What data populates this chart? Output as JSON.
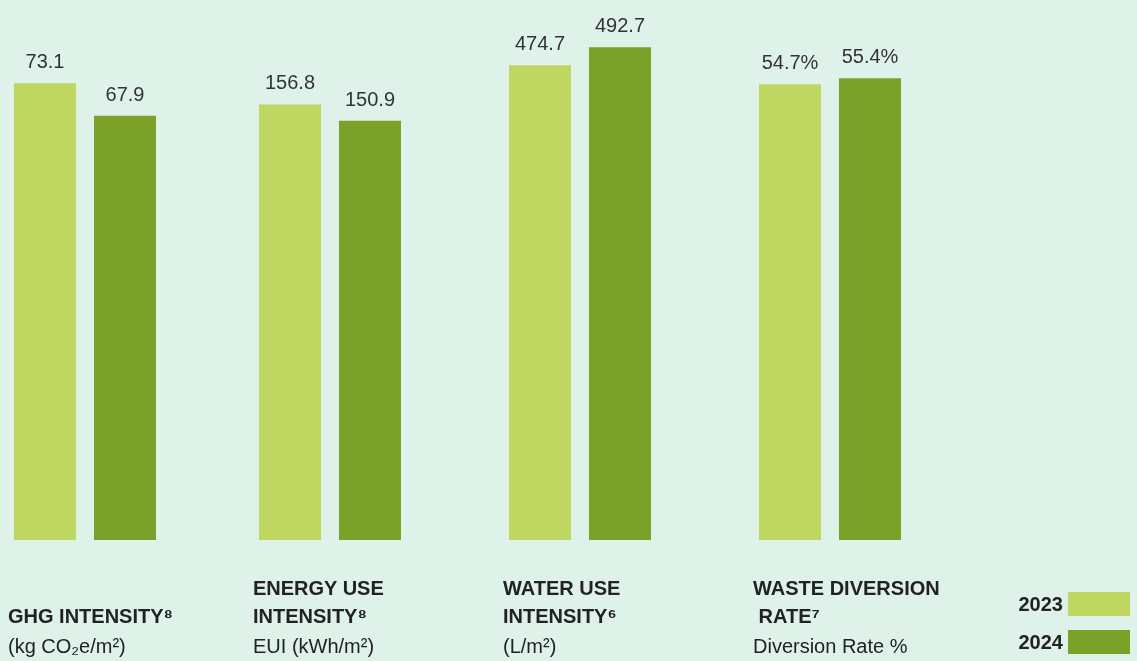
{
  "chart_data": [
    {
      "type": "bar",
      "title": "GHG INTENSITY⁸",
      "xlabel": "(kg CO₂e/m²)",
      "categories": [
        null
      ],
      "data_labels": true,
      "legend": false,
      "series": [
        {
          "color": "#bfd660",
          "values": [
            73.1
          ]
        },
        {
          "color": "#7ba128",
          "values": [
            67.9
          ]
        }
      ]
    },
    {
      "type": "bar",
      "title": "ENERGY USE INTENSITY⁸",
      "xlabel": "EUI (kWh/m²)",
      "categories": [
        null
      ],
      "data_labels": true,
      "legend": false,
      "series": [
        {
          "color": "#bfd660",
          "values": [
            156.8
          ]
        },
        {
          "color": "#7ba128",
          "values": [
            150.9
          ]
        }
      ]
    },
    {
      "type": "bar",
      "title": "WATER USE INTENSITY⁶",
      "xlabel": "(L/m²)",
      "categories": [
        null
      ],
      "data_labels": true,
      "legend": false,
      "series": [
        {
          "color": "#bfd660",
          "values": [
            474.7
          ]
        },
        {
          "color": "#7ba128",
          "values": [
            492.7
          ]
        }
      ]
    },
    {
      "type": "bar",
      "title": "WASTE DIVERSION RATE⁷",
      "xlabel": "Diversion Rate %",
      "categories": [
        null
      ],
      "legend": "bottom right",
      "series": [
        {
          "name": "2023",
          "color": "#bfd660",
          "values": [
            54.7
          ],
          "value_labels": [
            "54.7%"
          ]
        },
        {
          "name": "2024",
          "color": "#7ba128",
          "values": [
            55.4
          ],
          "value_labels": [
            "55.4%"
          ]
        }
      ]
    }
  ]
}
